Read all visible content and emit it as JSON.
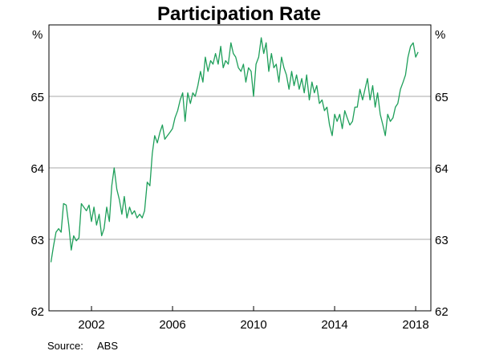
{
  "chart_data": {
    "type": "line",
    "title": "Participation Rate",
    "unit_left": "%",
    "unit_right": "%",
    "source_label": "Source:",
    "source_value": "ABS",
    "ylim": [
      62,
      66
    ],
    "xlim": [
      1999.9,
      2018.75
    ],
    "y_ticks": [
      62,
      63,
      64,
      65
    ],
    "y_tick_labels": [
      "62",
      "63",
      "64",
      "65"
    ],
    "x_ticks": [
      2002,
      2006,
      2010,
      2014,
      2018
    ],
    "x_tick_labels": [
      "2002",
      "2006",
      "2010",
      "2014",
      "2018"
    ],
    "grid": "horizontal",
    "colors": {
      "line": "#1e9f5a",
      "grid": "#a8a8a8",
      "axis": "#000000"
    },
    "series": [
      {
        "values": [
          [
            2000.0,
            62.68
          ],
          [
            2000.12,
            62.9
          ],
          [
            2000.25,
            63.1
          ],
          [
            2000.38,
            63.15
          ],
          [
            2000.5,
            63.1
          ],
          [
            2000.62,
            63.5
          ],
          [
            2000.75,
            63.48
          ],
          [
            2000.88,
            63.2
          ],
          [
            2001.0,
            62.85
          ],
          [
            2001.12,
            63.05
          ],
          [
            2001.25,
            62.98
          ],
          [
            2001.38,
            63.02
          ],
          [
            2001.5,
            63.5
          ],
          [
            2001.62,
            63.45
          ],
          [
            2001.75,
            63.4
          ],
          [
            2001.88,
            63.48
          ],
          [
            2002.0,
            63.25
          ],
          [
            2002.12,
            63.45
          ],
          [
            2002.25,
            63.2
          ],
          [
            2002.38,
            63.35
          ],
          [
            2002.5,
            63.05
          ],
          [
            2002.62,
            63.15
          ],
          [
            2002.75,
            63.45
          ],
          [
            2002.88,
            63.25
          ],
          [
            2003.0,
            63.75
          ],
          [
            2003.12,
            64.0
          ],
          [
            2003.25,
            63.7
          ],
          [
            2003.38,
            63.55
          ],
          [
            2003.5,
            63.35
          ],
          [
            2003.62,
            63.6
          ],
          [
            2003.75,
            63.3
          ],
          [
            2003.88,
            63.45
          ],
          [
            2004.0,
            63.35
          ],
          [
            2004.12,
            63.4
          ],
          [
            2004.25,
            63.3
          ],
          [
            2004.38,
            63.35
          ],
          [
            2004.5,
            63.3
          ],
          [
            2004.62,
            63.4
          ],
          [
            2004.75,
            63.8
          ],
          [
            2004.88,
            63.75
          ],
          [
            2005.0,
            64.2
          ],
          [
            2005.12,
            64.45
          ],
          [
            2005.25,
            64.35
          ],
          [
            2005.38,
            64.5
          ],
          [
            2005.5,
            64.6
          ],
          [
            2005.62,
            64.4
          ],
          [
            2005.75,
            64.45
          ],
          [
            2005.88,
            64.5
          ],
          [
            2006.0,
            64.55
          ],
          [
            2006.12,
            64.7
          ],
          [
            2006.25,
            64.8
          ],
          [
            2006.38,
            64.95
          ],
          [
            2006.5,
            65.05
          ],
          [
            2006.62,
            64.65
          ],
          [
            2006.75,
            65.05
          ],
          [
            2006.88,
            64.9
          ],
          [
            2007.0,
            65.05
          ],
          [
            2007.12,
            65.0
          ],
          [
            2007.25,
            65.15
          ],
          [
            2007.38,
            65.35
          ],
          [
            2007.5,
            65.2
          ],
          [
            2007.62,
            65.55
          ],
          [
            2007.75,
            65.35
          ],
          [
            2007.88,
            65.5
          ],
          [
            2008.0,
            65.45
          ],
          [
            2008.12,
            65.6
          ],
          [
            2008.25,
            65.45
          ],
          [
            2008.38,
            65.7
          ],
          [
            2008.5,
            65.4
          ],
          [
            2008.62,
            65.5
          ],
          [
            2008.75,
            65.45
          ],
          [
            2008.88,
            65.75
          ],
          [
            2009.0,
            65.6
          ],
          [
            2009.12,
            65.55
          ],
          [
            2009.25,
            65.4
          ],
          [
            2009.38,
            65.35
          ],
          [
            2009.5,
            65.45
          ],
          [
            2009.62,
            65.2
          ],
          [
            2009.75,
            65.4
          ],
          [
            2009.88,
            65.35
          ],
          [
            2010.0,
            65.0
          ],
          [
            2010.12,
            65.45
          ],
          [
            2010.25,
            65.55
          ],
          [
            2010.38,
            65.82
          ],
          [
            2010.5,
            65.6
          ],
          [
            2010.62,
            65.75
          ],
          [
            2010.75,
            65.35
          ],
          [
            2010.88,
            65.6
          ],
          [
            2011.0,
            65.4
          ],
          [
            2011.12,
            65.45
          ],
          [
            2011.25,
            65.2
          ],
          [
            2011.38,
            65.55
          ],
          [
            2011.5,
            65.4
          ],
          [
            2011.62,
            65.3
          ],
          [
            2011.75,
            65.1
          ],
          [
            2011.88,
            65.35
          ],
          [
            2012.0,
            65.15
          ],
          [
            2012.12,
            65.3
          ],
          [
            2012.25,
            65.1
          ],
          [
            2012.38,
            65.25
          ],
          [
            2012.5,
            65.05
          ],
          [
            2012.62,
            65.3
          ],
          [
            2012.75,
            64.95
          ],
          [
            2012.88,
            65.2
          ],
          [
            2013.0,
            65.05
          ],
          [
            2013.12,
            65.15
          ],
          [
            2013.25,
            64.9
          ],
          [
            2013.38,
            64.95
          ],
          [
            2013.5,
            64.8
          ],
          [
            2013.62,
            64.85
          ],
          [
            2013.75,
            64.6
          ],
          [
            2013.88,
            64.45
          ],
          [
            2014.0,
            64.75
          ],
          [
            2014.12,
            64.65
          ],
          [
            2014.25,
            64.75
          ],
          [
            2014.38,
            64.55
          ],
          [
            2014.5,
            64.8
          ],
          [
            2014.62,
            64.7
          ],
          [
            2014.75,
            64.6
          ],
          [
            2014.88,
            64.65
          ],
          [
            2015.0,
            64.85
          ],
          [
            2015.12,
            64.85
          ],
          [
            2015.25,
            65.1
          ],
          [
            2015.38,
            64.95
          ],
          [
            2015.5,
            65.1
          ],
          [
            2015.62,
            65.25
          ],
          [
            2015.75,
            64.95
          ],
          [
            2015.88,
            65.15
          ],
          [
            2016.0,
            64.85
          ],
          [
            2016.12,
            65.05
          ],
          [
            2016.25,
            64.75
          ],
          [
            2016.38,
            64.6
          ],
          [
            2016.5,
            64.45
          ],
          [
            2016.62,
            64.75
          ],
          [
            2016.75,
            64.65
          ],
          [
            2016.88,
            64.7
          ],
          [
            2017.0,
            64.85
          ],
          [
            2017.12,
            64.9
          ],
          [
            2017.25,
            65.1
          ],
          [
            2017.38,
            65.2
          ],
          [
            2017.5,
            65.3
          ],
          [
            2017.62,
            65.55
          ],
          [
            2017.75,
            65.7
          ],
          [
            2017.88,
            65.75
          ],
          [
            2018.0,
            65.55
          ],
          [
            2018.12,
            65.62
          ]
        ]
      }
    ]
  }
}
